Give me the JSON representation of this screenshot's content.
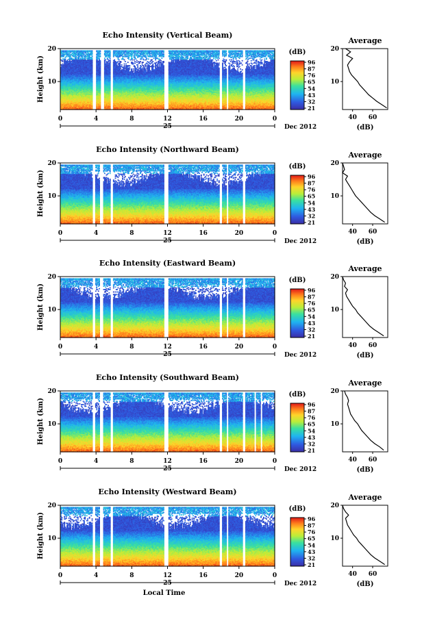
{
  "chart_data": [
    {
      "type": "heatmap",
      "title": "Echo Intensity (Vertical Beam)",
      "ylabel": "Height (km)",
      "x_ticks": [
        "0",
        "4",
        "8",
        "12",
        "16",
        "20",
        "0"
      ],
      "x_sub_label": "25",
      "date_label": "Dec 2012",
      "y_ticks": [
        "20",
        "10"
      ],
      "xlim": [
        0,
        24
      ],
      "ylim": [
        1.5,
        20
      ],
      "colorbar": {
        "unit": "(dB)",
        "ticks": [
          "96",
          "87",
          "76",
          "65",
          "54",
          "43",
          "32",
          "21"
        ]
      },
      "gaps": [
        [
          3.6,
          4.0
        ],
        [
          4.5,
          4.9
        ],
        [
          5.6,
          5.9
        ],
        [
          11.6,
          12.1
        ],
        [
          17.8,
          18.1
        ],
        [
          18.6,
          18.8
        ],
        [
          20.4,
          20.7
        ]
      ],
      "profile": {
        "title": "Average",
        "xlabel": "(dB)",
        "x_ticks": [
          "40",
          "60"
        ],
        "y_ticks": [
          "20",
          "10"
        ],
        "xlim": [
          30,
          75
        ],
        "ylim": [
          1.5,
          20
        ],
        "heights": [
          2,
          3,
          4,
          5,
          6,
          7,
          8,
          9,
          10,
          11,
          12,
          13,
          14,
          15,
          16,
          17,
          18,
          19,
          20
        ],
        "values": [
          74,
          69,
          64,
          60,
          56,
          53,
          50,
          47,
          45,
          42,
          39,
          37,
          36,
          35,
          37,
          40,
          34,
          38,
          33
        ]
      }
    },
    {
      "type": "heatmap",
      "title": "Echo Intensity (Northward Beam)",
      "ylabel": "Height (km)",
      "x_ticks": [
        "0",
        "4",
        "8",
        "12",
        "16",
        "20",
        "0"
      ],
      "x_sub_label": "25",
      "date_label": "Dec 2012",
      "y_ticks": [
        "20",
        "10"
      ],
      "xlim": [
        0,
        24
      ],
      "ylim": [
        1.5,
        20
      ],
      "colorbar": {
        "unit": "(dB)",
        "ticks": [
          "96",
          "87",
          "76",
          "65",
          "54",
          "43",
          "32",
          "21"
        ]
      },
      "gaps": [
        [
          3.6,
          3.9
        ],
        [
          4.4,
          4.8
        ],
        [
          5.6,
          5.9
        ],
        [
          11.6,
          12.1
        ],
        [
          17.8,
          18.1
        ],
        [
          18.6,
          18.8
        ],
        [
          20.4,
          20.7
        ]
      ],
      "profile": {
        "title": "Average",
        "xlabel": "(dB)",
        "x_ticks": [
          "40",
          "60"
        ],
        "y_ticks": [
          "20",
          "10"
        ],
        "xlim": [
          30,
          75
        ],
        "ylim": [
          1.5,
          20
        ],
        "heights": [
          2,
          3,
          4,
          5,
          6,
          7,
          8,
          9,
          10,
          11,
          12,
          13,
          14,
          15,
          16,
          17,
          18,
          19,
          20
        ],
        "values": [
          72,
          67,
          62,
          58,
          55,
          52,
          49,
          46,
          43,
          41,
          39,
          37,
          35,
          33,
          35,
          30,
          32,
          31,
          30
        ]
      }
    },
    {
      "type": "heatmap",
      "title": "Echo Intensity (Eastward Beam)",
      "ylabel": "Height (km)",
      "x_ticks": [
        "0",
        "4",
        "8",
        "12",
        "16",
        "20",
        "0"
      ],
      "x_sub_label": "25",
      "date_label": "Dec 2012",
      "y_ticks": [
        "20",
        "10"
      ],
      "xlim": [
        0,
        24
      ],
      "ylim": [
        1.5,
        20
      ],
      "colorbar": {
        "unit": "(dB)",
        "ticks": [
          "96",
          "87",
          "76",
          "65",
          "54",
          "43",
          "32",
          "21"
        ]
      },
      "gaps": [
        [
          3.6,
          3.9
        ],
        [
          4.4,
          4.8
        ],
        [
          5.6,
          5.9
        ],
        [
          11.6,
          12.1
        ],
        [
          17.8,
          18.1
        ],
        [
          18.6,
          18.8
        ],
        [
          20.4,
          20.7
        ]
      ],
      "profile": {
        "title": "Average",
        "xlabel": "(dB)",
        "x_ticks": [
          "40",
          "60"
        ],
        "y_ticks": [
          "20",
          "10"
        ],
        "xlim": [
          30,
          75
        ],
        "ylim": [
          1.5,
          20
        ],
        "heights": [
          2,
          3,
          4,
          5,
          6,
          7,
          8,
          9,
          10,
          11,
          12,
          13,
          14,
          15,
          16,
          17,
          18,
          19,
          20
        ],
        "values": [
          71,
          66,
          61,
          57,
          54,
          51,
          48,
          45,
          43,
          40,
          38,
          36,
          34,
          33,
          35,
          32,
          33,
          31,
          30
        ]
      }
    },
    {
      "type": "heatmap",
      "title": "Echo Intensity (Southward Beam)",
      "ylabel": "Height (km)",
      "x_ticks": [
        "0",
        "4",
        "8",
        "12",
        "16",
        "20",
        "0"
      ],
      "x_sub_label": "25",
      "date_label": "Dec 2012",
      "y_ticks": [
        "20",
        "10"
      ],
      "xlim": [
        0,
        24
      ],
      "ylim": [
        1.5,
        20
      ],
      "colorbar": {
        "unit": "(dB)",
        "ticks": [
          "96",
          "87",
          "76",
          "65",
          "54",
          "43",
          "32",
          "21"
        ]
      },
      "gaps": [
        [
          3.6,
          3.9
        ],
        [
          4.4,
          4.8
        ],
        [
          5.6,
          5.9
        ],
        [
          11.6,
          12.1
        ],
        [
          17.8,
          18.1
        ],
        [
          18.6,
          18.8
        ],
        [
          20.4,
          20.7
        ],
        [
          21.7,
          21.9
        ],
        [
          22.4,
          22.6
        ]
      ],
      "profile": {
        "title": "Average",
        "xlabel": "(dB)",
        "x_ticks": [
          "40",
          "60"
        ],
        "y_ticks": [
          "20",
          "10"
        ],
        "xlim": [
          30,
          75
        ],
        "ylim": [
          1.5,
          20
        ],
        "heights": [
          2,
          3,
          4,
          5,
          6,
          7,
          8,
          9,
          10,
          11,
          12,
          13,
          14,
          15,
          16,
          17,
          18,
          19,
          20
        ],
        "values": [
          71,
          67,
          62,
          58,
          55,
          52,
          49,
          47,
          45,
          42,
          40,
          38,
          37,
          36,
          35,
          36,
          35,
          33,
          32
        ]
      }
    },
    {
      "type": "heatmap",
      "title": "Echo Intensity (Westward Beam)",
      "ylabel": "Height (km)",
      "xlabel": "Local Time",
      "x_ticks": [
        "0",
        "4",
        "8",
        "12",
        "16",
        "20",
        "0"
      ],
      "x_sub_label": "25",
      "date_label": "Dec 2012",
      "y_ticks": [
        "20",
        "10"
      ],
      "xlim": [
        0,
        24
      ],
      "ylim": [
        1.5,
        20
      ],
      "colorbar": {
        "unit": "(dB)",
        "ticks": [
          "96",
          "87",
          "76",
          "65",
          "54",
          "43",
          "32",
          "21"
        ]
      },
      "gaps": [
        [
          3.6,
          3.9
        ],
        [
          4.4,
          4.8
        ],
        [
          5.6,
          5.9
        ],
        [
          11.6,
          12.1
        ],
        [
          17.8,
          18.1
        ],
        [
          18.6,
          18.8
        ],
        [
          20.4,
          20.7
        ]
      ],
      "profile": {
        "title": "Average",
        "xlabel": "(dB)",
        "x_ticks": [
          "40",
          "60"
        ],
        "y_ticks": [
          "20",
          "10"
        ],
        "xlim": [
          30,
          75
        ],
        "ylim": [
          1.5,
          20
        ],
        "heights": [
          2,
          3,
          4,
          5,
          6,
          7,
          8,
          9,
          10,
          11,
          12,
          13,
          14,
          15,
          16,
          17,
          18,
          19,
          20
        ],
        "values": [
          72,
          67,
          62,
          58,
          55,
          52,
          49,
          46,
          44,
          41,
          39,
          37,
          35,
          34,
          33,
          36,
          33,
          31,
          30
        ]
      }
    }
  ]
}
